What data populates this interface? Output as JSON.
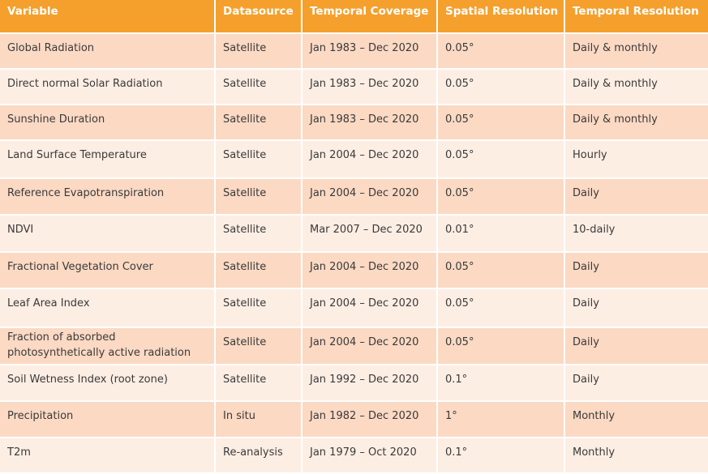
{
  "table": {
    "headers": [
      "Variable",
      "Datasource",
      "Temporal Coverage",
      "Spatial Resolution",
      "Temporal Resolution"
    ],
    "rows": [
      [
        "Global Radiation",
        "Satellite",
        "Jan 1983 – Dec 2020",
        "0.05°",
        "Daily & monthly"
      ],
      [
        "Direct normal Solar Radiation",
        "Satellite",
        "Jan 1983 – Dec 2020",
        "0.05°",
        "Daily & monthly"
      ],
      [
        "Sunshine Duration",
        "Satellite",
        "Jan 1983 – Dec 2020",
        "0.05°",
        "Daily & monthly"
      ],
      [
        "Land Surface Temperature",
        "Satellite",
        "Jan 2004 – Dec 2020",
        "0.05°",
        "Hourly"
      ],
      [
        "Reference Evapotranspiration",
        "Satellite",
        "Jan 2004 – Dec 2020",
        "0.05°",
        "Daily"
      ],
      [
        "NDVI",
        "Satellite",
        "Mar 2007 – Dec 2020",
        "0.01°",
        "10-daily"
      ],
      [
        "Fractional Vegetation Cover",
        "Satellite",
        "Jan 2004 – Dec 2020",
        "0.05°",
        "Daily"
      ],
      [
        "Leaf Area Index",
        "Satellite",
        "Jan 2004 – Dec 2020",
        "0.05°",
        "Daily"
      ],
      [
        "Fraction of absorbed photosynthetically active radiation",
        "Satellite",
        "Jan 2004 – Dec 2020",
        "0.05°",
        "Daily"
      ],
      [
        "Soil Wetness Index (root zone)",
        "Satellite",
        "Jan 1992 – Dec 2020",
        "0.1°",
        "Daily"
      ],
      [
        "Precipitation",
        "In situ",
        "Jan 1982 – Dec 2020",
        "1°",
        "Monthly"
      ],
      [
        "T2m",
        "Re-analysis",
        "Jan 1979 – Oct 2020",
        "0.1°",
        "Monthly"
      ]
    ]
  },
  "colors": {
    "header_background": "#f5a02c",
    "header_text": "#ffffff",
    "row_odd_background": "#fbd9c3",
    "row_even_background": "#fdeee4",
    "body_text": "#3a3a3a"
  }
}
